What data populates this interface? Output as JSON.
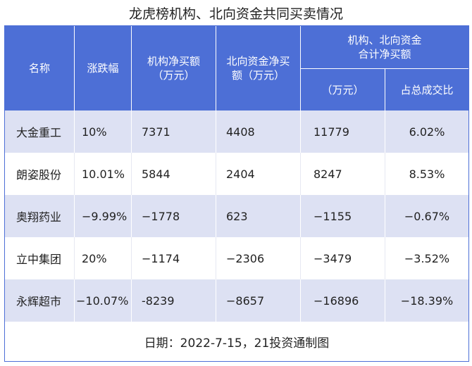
{
  "title": "龙虎榜机构、北向资金共同买卖情况",
  "headers": {
    "name": "名称",
    "change": "涨跌幅",
    "inst": "机构净买额\n（万元）",
    "north": "北向资金净买\n额（万元）",
    "combined": "机构、北向资金\n合计净买额",
    "combined_unit": "（万元）",
    "ratio": "占总成交比"
  },
  "rows": [
    {
      "name": "大金重工",
      "change": "10%",
      "inst": "7371",
      "north": "4408",
      "combined": "11779",
      "ratio": "6.02%"
    },
    {
      "name": "朗姿股份",
      "change": "10.01%",
      "inst": "5844",
      "north": "2404",
      "combined": "8247",
      "ratio": "8.53%"
    },
    {
      "name": "奥翔药业",
      "change": "−9.99%",
      "inst": "−1778",
      "north": "623",
      "combined": "−1155",
      "ratio": "−0.67%"
    },
    {
      "name": "立中集团",
      "change": "20%",
      "inst": "−1174",
      "north": "−2306",
      "combined": "−3479",
      "ratio": "−3.52%"
    },
    {
      "name": "永辉超市",
      "change": "−10.07%",
      "inst": "-8239",
      "north": "−8657",
      "combined": "−16896",
      "ratio": "−18.39%"
    }
  ],
  "footer": "日期：2022-7-15，21投资通制图",
  "colors": {
    "header_bg": "#4d6fd6",
    "row_alt_bg": "#dde1f3",
    "row_plain_bg": "#ffffff"
  }
}
